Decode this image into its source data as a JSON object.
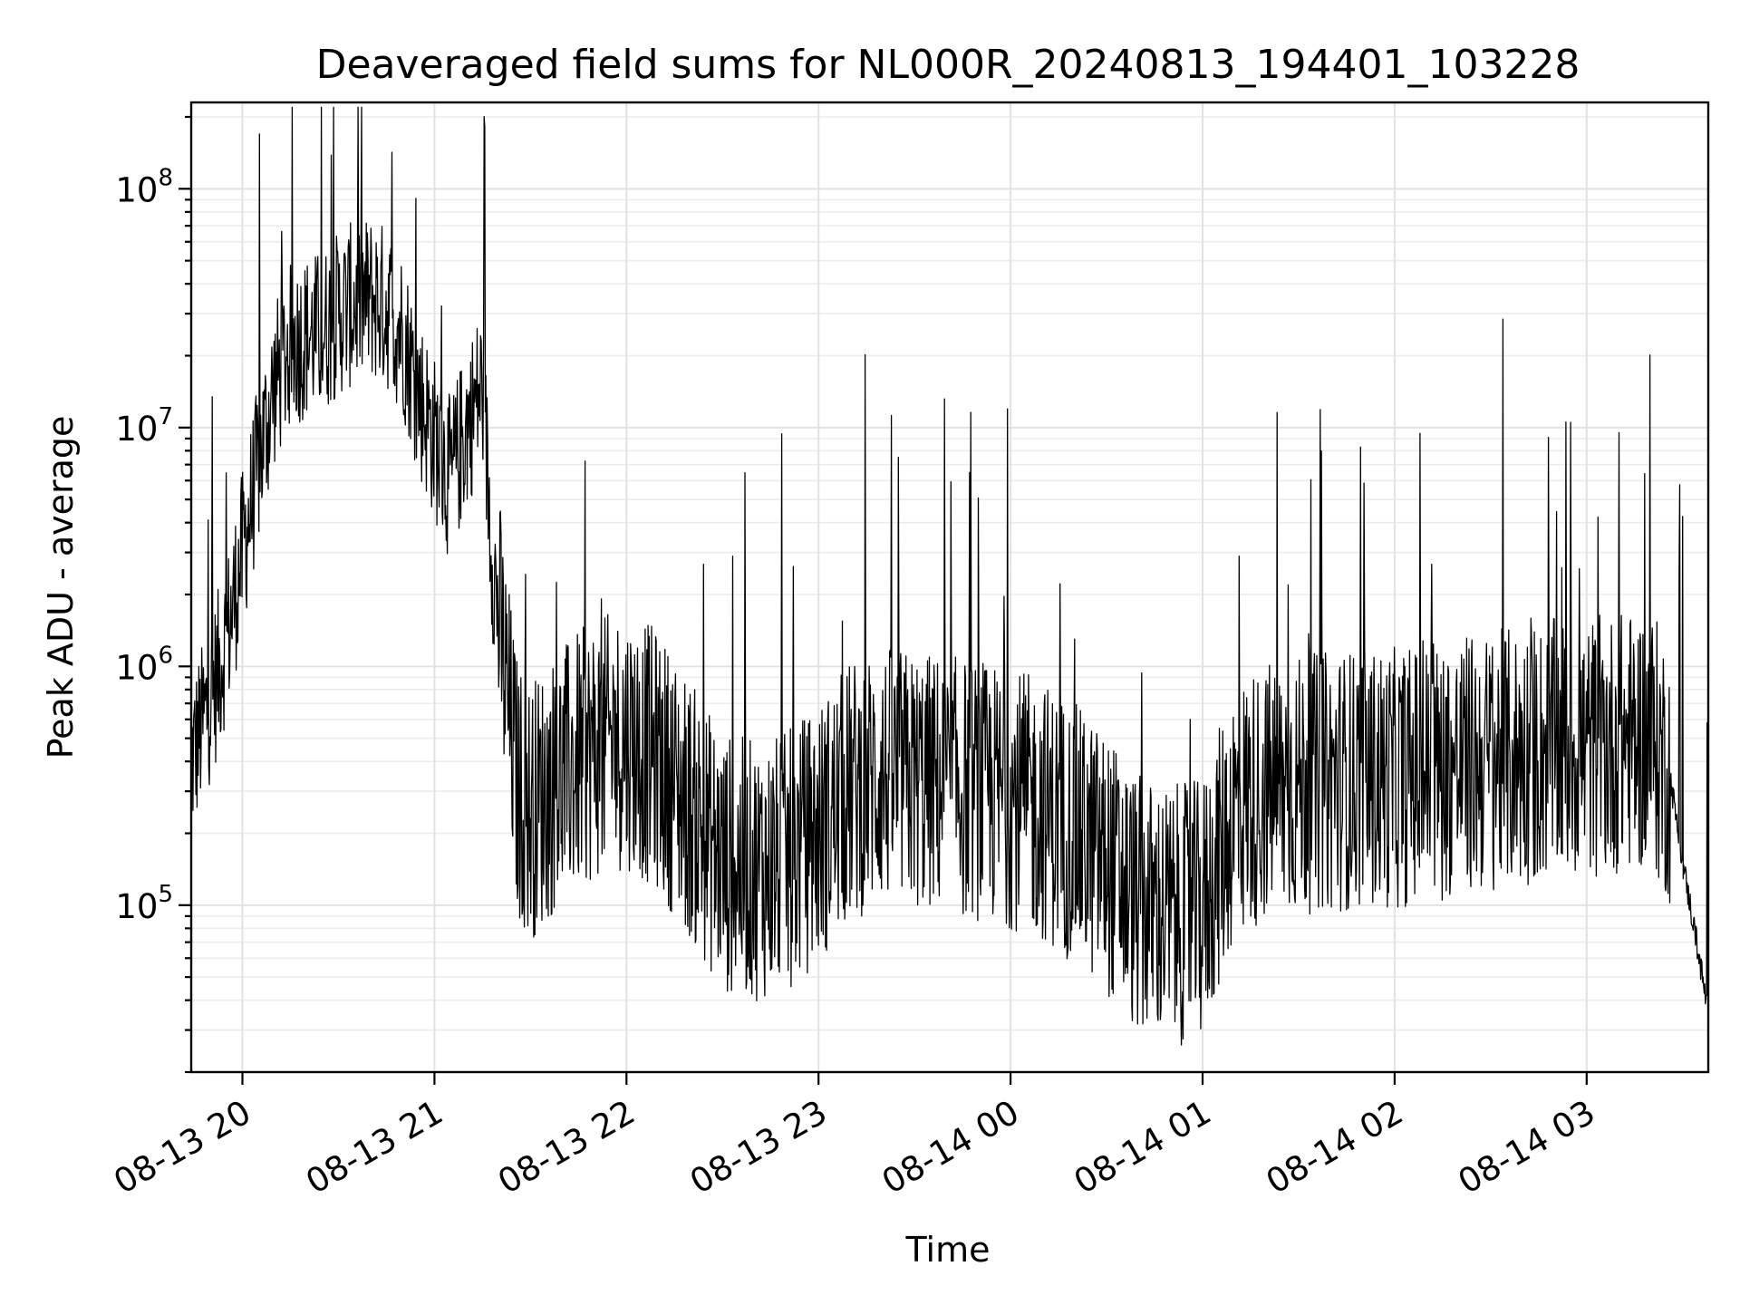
{
  "chart_data": {
    "type": "line",
    "title": "Deaveraged field sums for NL000R_20240813_194401_103228",
    "xlabel": "Time",
    "ylabel": "Peak ADU - average",
    "yscale": "log",
    "ylim": [
      20000,
      230000000
    ],
    "xlim": [
      "08-13 19:44",
      "08-14 03:38"
    ],
    "grid": true,
    "x_ticks": [
      "08-13 20",
      "08-13 21",
      "08-13 22",
      "08-13 23",
      "08-14 00",
      "08-14 01",
      "08-14 02",
      "08-14 03"
    ],
    "y_ticks": [
      {
        "value": 100000,
        "base": "10",
        "exp": "5"
      },
      {
        "value": 1000000,
        "base": "10",
        "exp": "6"
      },
      {
        "value": 10000000,
        "base": "10",
        "exp": "7"
      },
      {
        "value": 100000000,
        "base": "10",
        "exp": "8"
      }
    ],
    "series": [
      {
        "color": "#000000",
        "points": [
          [
            "08-13 19:44",
            400000
          ],
          [
            "08-13 19:48",
            600000
          ],
          [
            "08-13 19:52",
            900000
          ],
          [
            "08-13 19:56",
            1500000
          ],
          [
            "08-13 20:00",
            3000000
          ],
          [
            "08-13 20:05",
            7000000
          ],
          [
            "08-13 20:10",
            15000000
          ],
          [
            "08-13 20:15",
            22000000
          ],
          [
            "08-13 20:20",
            24000000
          ],
          [
            "08-13 20:25",
            25000000
          ],
          [
            "08-13 20:30",
            30000000
          ],
          [
            "08-13 20:35",
            33000000
          ],
          [
            "08-13 20:40",
            35000000
          ],
          [
            "08-13 20:45",
            32000000
          ],
          [
            "08-13 20:50",
            25000000
          ],
          [
            "08-13 20:55",
            14000000
          ],
          [
            "08-13 21:00",
            9000000
          ],
          [
            "08-13 21:05",
            6000000
          ],
          [
            "08-13 21:10",
            10000000
          ],
          [
            "08-13 21:15",
            15000000
          ],
          [
            "08-13 21:18",
            3000000
          ],
          [
            "08-13 21:22",
            900000
          ],
          [
            "08-13 21:26",
            300000
          ],
          [
            "08-13 21:30",
            250000
          ],
          [
            "08-13 21:40",
            350000
          ],
          [
            "08-13 21:50",
            450000
          ],
          [
            "08-13 22:00",
            500000
          ],
          [
            "08-13 22:10",
            400000
          ],
          [
            "08-13 22:20",
            250000
          ],
          [
            "08-13 22:30",
            150000
          ],
          [
            "08-13 22:40",
            140000
          ],
          [
            "08-13 22:50",
            150000
          ],
          [
            "08-13 23:00",
            200000
          ],
          [
            "08-13 23:10",
            300000
          ],
          [
            "08-13 23:20",
            350000
          ],
          [
            "08-13 23:30",
            330000
          ],
          [
            "08-13 23:40",
            320000
          ],
          [
            "08-13 23:50",
            300000
          ],
          [
            "08-14 00:00",
            280000
          ],
          [
            "08-14 00:10",
            250000
          ],
          [
            "08-14 00:20",
            200000
          ],
          [
            "08-14 00:30",
            150000
          ],
          [
            "08-14 00:40",
            100000
          ],
          [
            "08-14 00:50",
            90000
          ],
          [
            "08-14 01:00",
            95000
          ],
          [
            "08-14 01:10",
            250000
          ],
          [
            "08-14 01:20",
            300000
          ],
          [
            "08-14 01:30",
            320000
          ],
          [
            "08-14 01:40",
            330000
          ],
          [
            "08-14 01:50",
            340000
          ],
          [
            "08-14 02:00",
            340000
          ],
          [
            "08-14 02:10",
            360000
          ],
          [
            "08-14 02:20",
            380000
          ],
          [
            "08-14 02:30",
            400000
          ],
          [
            "08-14 02:40",
            420000
          ],
          [
            "08-14 02:50",
            450000
          ],
          [
            "08-14 03:00",
            450000
          ],
          [
            "08-14 03:10",
            480000
          ],
          [
            "08-14 03:20",
            500000
          ],
          [
            "08-14 03:26",
            350000
          ],
          [
            "08-14 03:30",
            150000
          ],
          [
            "08-14 03:34",
            75000
          ],
          [
            "08-14 03:38",
            35000
          ]
        ]
      }
    ]
  }
}
